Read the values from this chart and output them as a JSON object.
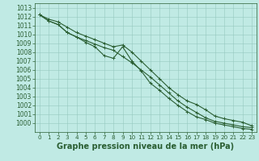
{
  "title": "Graphe pression niveau de la mer (hPa)",
  "bg_color": "#c0eae4",
  "grid_color": "#96c8c0",
  "line_color": "#2a5e32",
  "x_values": [
    0,
    1,
    2,
    3,
    4,
    5,
    6,
    7,
    8,
    9,
    10,
    11,
    12,
    13,
    14,
    15,
    16,
    17,
    18,
    19,
    20,
    21,
    22,
    23
  ],
  "line1": [
    1012.2,
    1011.7,
    1011.4,
    1010.8,
    1010.2,
    1009.8,
    1009.4,
    1009.0,
    1008.6,
    1008.8,
    1008.0,
    1007.0,
    1006.0,
    1005.0,
    1004.0,
    1003.2,
    1002.5,
    1002.1,
    1001.5,
    1000.8,
    1000.5,
    1000.3,
    1000.1,
    999.7
  ],
  "line2": [
    1012.2,
    1011.5,
    1011.1,
    1010.2,
    1009.7,
    1009.3,
    1008.9,
    1008.5,
    1008.2,
    1007.5,
    1006.8,
    1006.0,
    1005.2,
    1004.3,
    1003.4,
    1002.5,
    1001.8,
    1001.2,
    1000.6,
    1000.2,
    1000.0,
    999.8,
    999.6,
    999.5
  ],
  "line3": [
    1012.2,
    1011.5,
    1011.1,
    1010.2,
    1009.7,
    1009.1,
    1008.6,
    1007.6,
    1007.3,
    1008.6,
    1007.0,
    1005.9,
    1004.5,
    1003.7,
    1002.8,
    1002.0,
    1001.3,
    1000.7,
    1000.4,
    1000.0,
    999.8,
    999.6,
    999.4,
    999.3
  ],
  "ylim": [
    999.0,
    1013.5
  ],
  "yticks": [
    1000,
    1001,
    1002,
    1003,
    1004,
    1005,
    1006,
    1007,
    1008,
    1009,
    1010,
    1011,
    1012,
    1013
  ],
  "xlim": [
    -0.5,
    23.5
  ],
  "xticks": [
    0,
    1,
    2,
    3,
    4,
    5,
    6,
    7,
    8,
    9,
    10,
    11,
    12,
    13,
    14,
    15,
    16,
    17,
    18,
    19,
    20,
    21,
    22,
    23
  ],
  "tick_color": "#2a5e32",
  "ylabel_fontsize": 5.5,
  "xlabel_fontsize": 5.2,
  "title_fontsize": 7.0,
  "marker_size": 2.5,
  "line_width": 0.8
}
